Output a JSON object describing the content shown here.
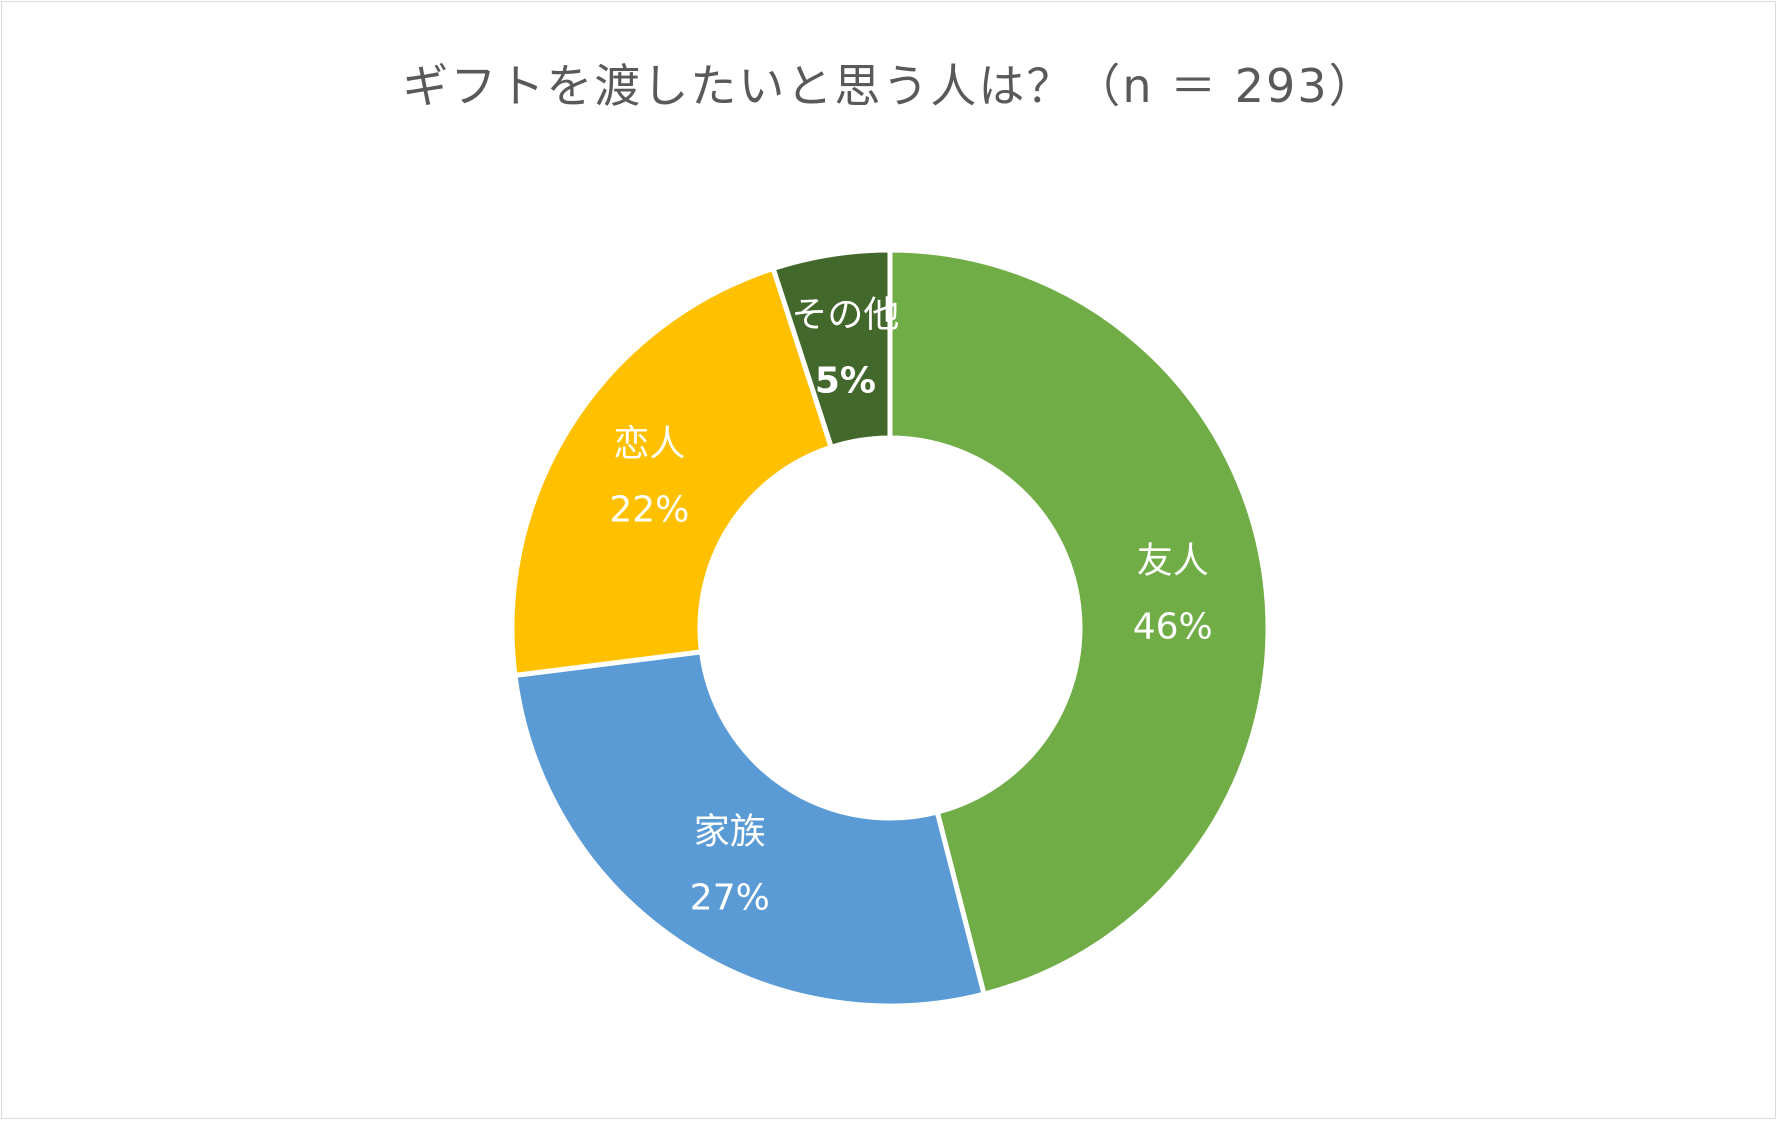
{
  "chart_data": {
    "type": "pie",
    "title": "ギフトを渡したいと思う人は？（n ＝ 293）",
    "categories": [
      "友人",
      "家族",
      "恋人",
      "その他"
    ],
    "values": [
      46,
      27,
      22,
      5
    ],
    "data_labels": [
      "46%",
      "27%",
      "22%",
      "5%"
    ],
    "colors": [
      "#70ad47",
      "#5b9bd5",
      "#ffc000",
      "#43682b"
    ],
    "label_style": [
      "normal",
      "normal",
      "normal",
      "bold"
    ],
    "legend": "none",
    "grid": false
  }
}
